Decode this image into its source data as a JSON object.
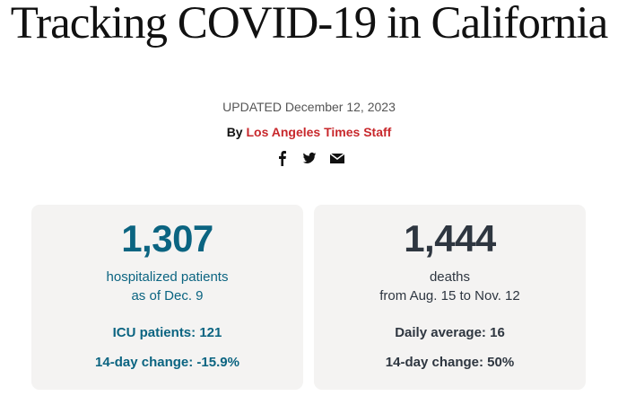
{
  "title": "Tracking COVID-19 in California",
  "updated": "UPDATED December 12, 2023",
  "byline": {
    "prefix": "By",
    "author": "Los Angeles Times Staff"
  },
  "share": [
    "facebook-icon",
    "twitter-icon",
    "email-icon"
  ],
  "colors": {
    "hospital": "#0b6481",
    "deaths": "#2e3640",
    "author": "#c8282c"
  },
  "cards": [
    {
      "value": "1,307",
      "line1": "hospitalized patients",
      "line2": "as of Dec. 9",
      "stat1": "ICU patients: 121",
      "stat2": "14-day change: -15.9%"
    },
    {
      "value": "1,444",
      "line1": "deaths",
      "line2": "from Aug. 15 to Nov. 12",
      "stat1": "Daily average: 16",
      "stat2": "14-day change: 50%"
    }
  ]
}
